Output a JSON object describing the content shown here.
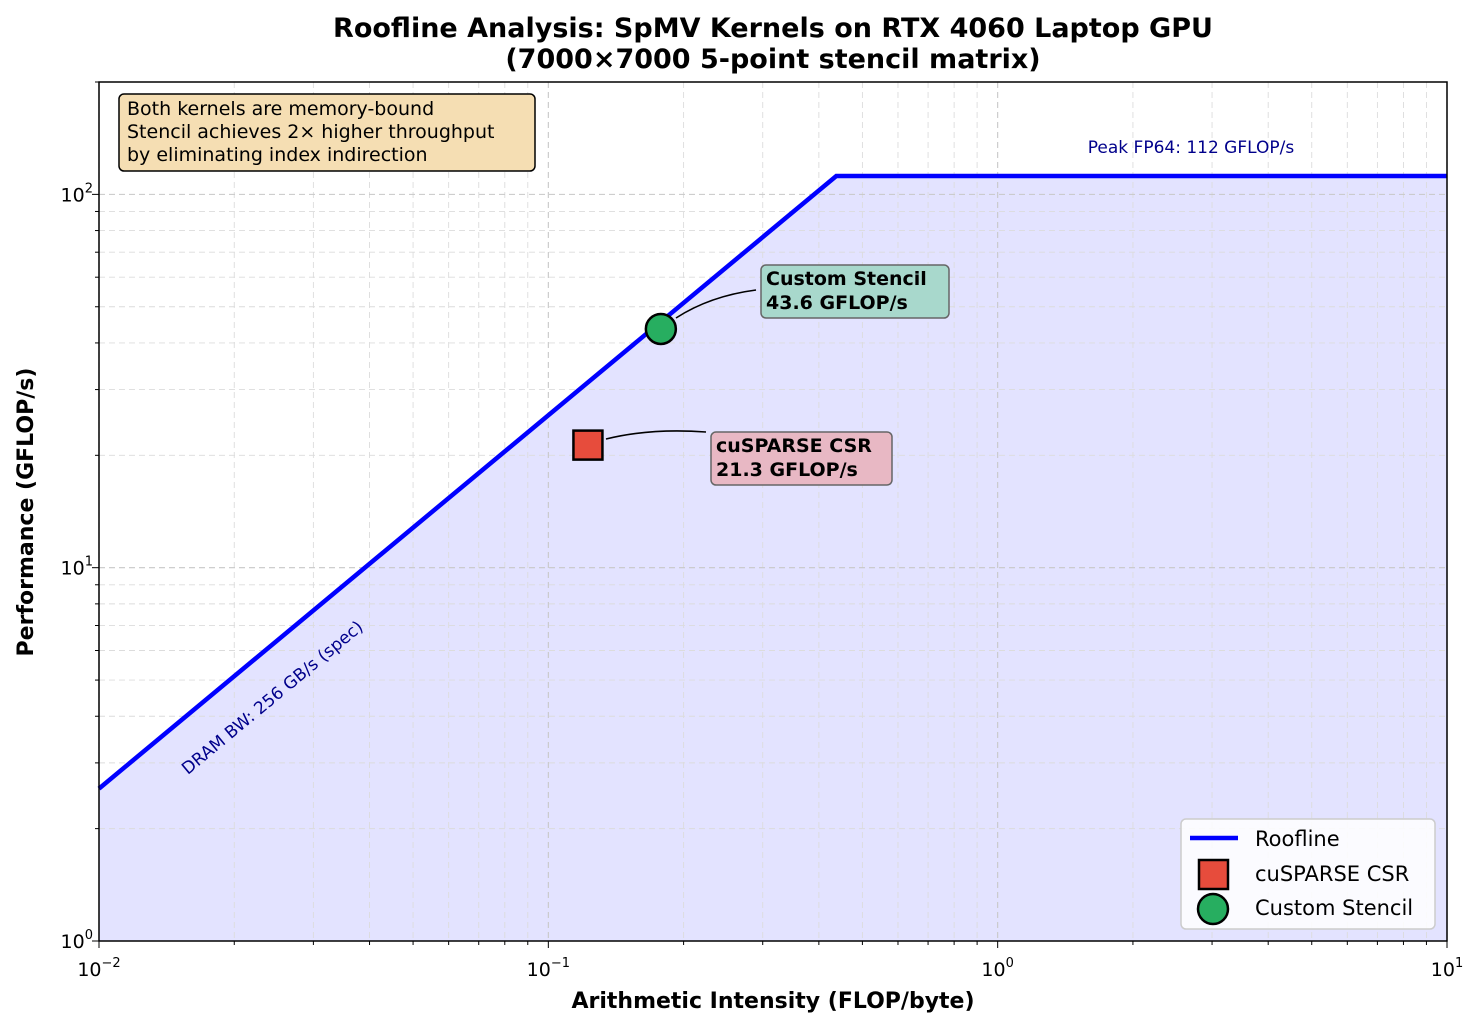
{
  "chart_data": {
    "type": "line",
    "title": "Roofline Analysis: SpMV Kernels on RTX 4060 Laptop GPU",
    "subtitle": "(7000×7000 5-point stencil matrix)",
    "xlabel": "Arithmetic Intensity (FLOP/byte)",
    "ylabel": "Performance (GFLOP/s)",
    "xscale": "log",
    "yscale": "log",
    "xlim": [
      0.01,
      10
    ],
    "ylim": [
      1,
      200
    ],
    "grid": true,
    "x_tick_labels": [
      {
        "base": "10",
        "exp": "−2",
        "value": 0.01
      },
      {
        "base": "10",
        "exp": "−1",
        "value": 0.1
      },
      {
        "base": "10",
        "exp": "0",
        "value": 1
      },
      {
        "base": "10",
        "exp": "1",
        "value": 10
      }
    ],
    "y_tick_labels": [
      {
        "base": "10",
        "exp": "0",
        "value": 1
      },
      {
        "base": "10",
        "exp": "1",
        "value": 10
      },
      {
        "base": "10",
        "exp": "2",
        "value": 100
      }
    ],
    "roofline": {
      "name": "Roofline",
      "color": "#0000ff",
      "bandwidth_gbs": 256,
      "peak_gflops": 112,
      "x": [
        0.01,
        0.4375,
        10
      ],
      "y": [
        2.56,
        112,
        112
      ],
      "fill_color": "#e3e3ff"
    },
    "series": [
      {
        "name": "cuSPARSE CSR",
        "x": 0.1225,
        "y": 21.3,
        "marker": "square",
        "color": "#e74c3c"
      },
      {
        "name": "Custom Stencil",
        "x": 0.178,
        "y": 43.6,
        "marker": "circle",
        "color": "#27ae60"
      }
    ],
    "annotations": [
      {
        "line1": "Custom Stencil",
        "line2": "43.6 GFLOP/s",
        "box_color": "#a8d8cc"
      },
      {
        "line1": "cuSPARSE CSR",
        "line2": "21.3 GFLOP/s",
        "box_color": "#e8b8c4"
      }
    ],
    "line_labels": {
      "bandwidth": "DRAM BW: 256 GB/s (spec)",
      "peak": "Peak FP64: 112 GFLOP/s"
    },
    "note": {
      "lines": [
        "Both kernels are memory-bound",
        "Stencil achieves 2× higher throughput",
        "by eliminating index indirection"
      ],
      "box_color": "#f5deb3"
    },
    "legend": {
      "placement": "lower-right",
      "entries": [
        "Roofline",
        "cuSPARSE CSR",
        "Custom Stencil"
      ]
    }
  }
}
